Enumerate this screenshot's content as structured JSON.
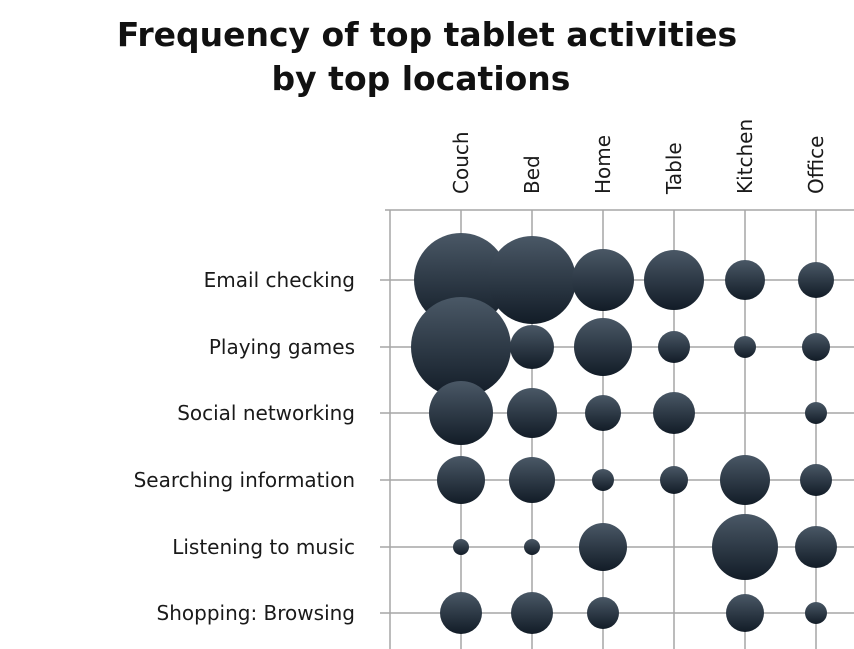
{
  "title_line1": "Frequency of top tablet activities",
  "title_line2": "by top locations",
  "chart_data": {
    "type": "bubble",
    "title": "Frequency of top tablet activities by top locations",
    "columns": [
      "Couch",
      "Bed",
      "Home",
      "Table",
      "Kitchen",
      "Office"
    ],
    "rows": [
      "Email checking",
      "Playing games",
      "Social networking",
      "Searching information",
      "Listening to music",
      "Shopping: Browsing"
    ],
    "values": [
      [
        47,
        44,
        31,
        30,
        20,
        18
      ],
      [
        50,
        22,
        29,
        16,
        11,
        14
      ],
      [
        32,
        25,
        18,
        21,
        null,
        11
      ],
      [
        24,
        23,
        11,
        14,
        25,
        16
      ],
      [
        8,
        8,
        24,
        null,
        33,
        21
      ],
      [
        21,
        21,
        16,
        null,
        19,
        11
      ]
    ],
    "bubble_color": "#1f2c39",
    "gridline_color": "#a6a6a6"
  }
}
